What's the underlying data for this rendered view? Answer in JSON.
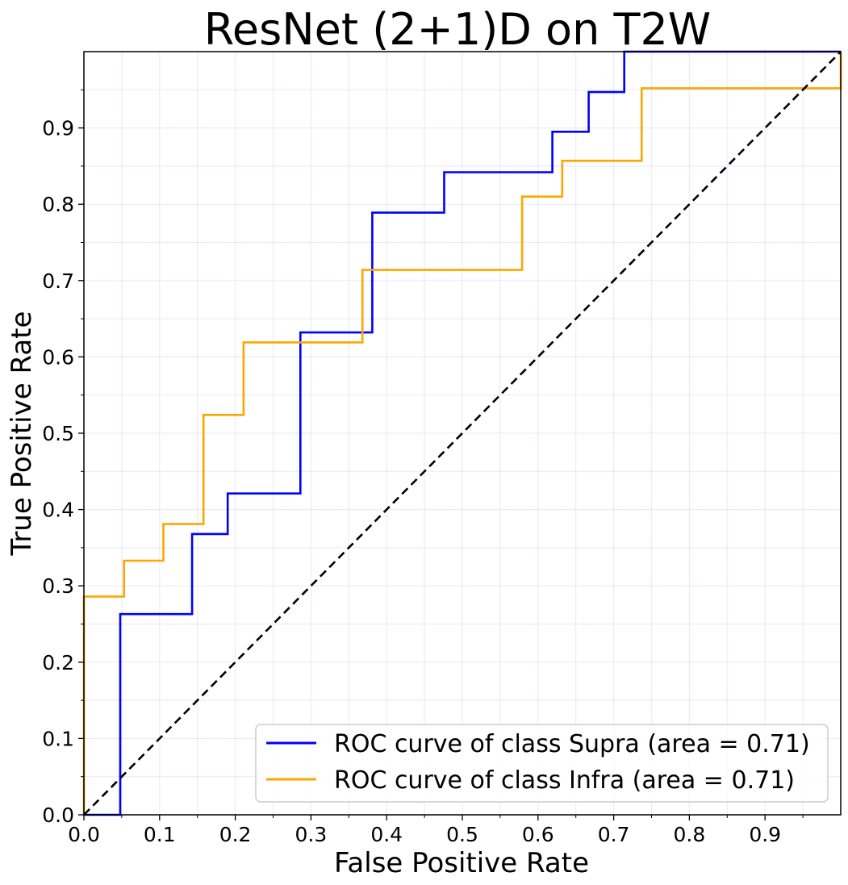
{
  "chart_data": {
    "type": "line",
    "title": "ResNet (2+1)D on T2W",
    "xlabel": "False Positive Rate",
    "ylabel": "True Positive Rate",
    "xlim": [
      0,
      1
    ],
    "ylim": [
      0,
      1
    ],
    "grid": true,
    "x_ticks": [
      "0.0",
      "0.1",
      "0.2",
      "0.3",
      "0.4",
      "0.5",
      "0.6",
      "0.7",
      "0.8",
      "0.9"
    ],
    "y_ticks": [
      "0.0",
      "0.1",
      "0.2",
      "0.3",
      "0.4",
      "0.5",
      "0.6",
      "0.7",
      "0.8",
      "0.9"
    ],
    "legend_position": "lower-right",
    "series": [
      {
        "name": "ROC curve of class Supra (area = 0.71)",
        "color": "#0000ff",
        "x": [
          0,
          0.048,
          0.048,
          0.143,
          0.143,
          0.19,
          0.19,
          0.286,
          0.286,
          0.381,
          0.381,
          0.476,
          0.476,
          0.619,
          0.619,
          0.667,
          0.667,
          0.714,
          0.714,
          1.0
        ],
        "y": [
          0,
          0,
          0.263,
          0.263,
          0.368,
          0.368,
          0.421,
          0.421,
          0.632,
          0.632,
          0.789,
          0.789,
          0.842,
          0.842,
          0.895,
          0.895,
          0.947,
          0.947,
          1.0,
          1.0
        ]
      },
      {
        "name": "ROC curve of class Infra (area = 0.71)",
        "color": "#ffa500",
        "x": [
          0,
          0,
          0.053,
          0.053,
          0.105,
          0.105,
          0.158,
          0.158,
          0.211,
          0.211,
          0.368,
          0.368,
          0.579,
          0.579,
          0.632,
          0.632,
          0.737,
          0.737,
          1.0,
          1.0
        ],
        "y": [
          0,
          0.286,
          0.286,
          0.333,
          0.333,
          0.381,
          0.381,
          0.524,
          0.524,
          0.619,
          0.619,
          0.714,
          0.714,
          0.81,
          0.81,
          0.857,
          0.857,
          0.952,
          0.952,
          1.0
        ]
      },
      {
        "color": "#000000",
        "dashed": true,
        "x": [
          0,
          1
        ],
        "y": [
          0,
          1
        ]
      }
    ]
  }
}
